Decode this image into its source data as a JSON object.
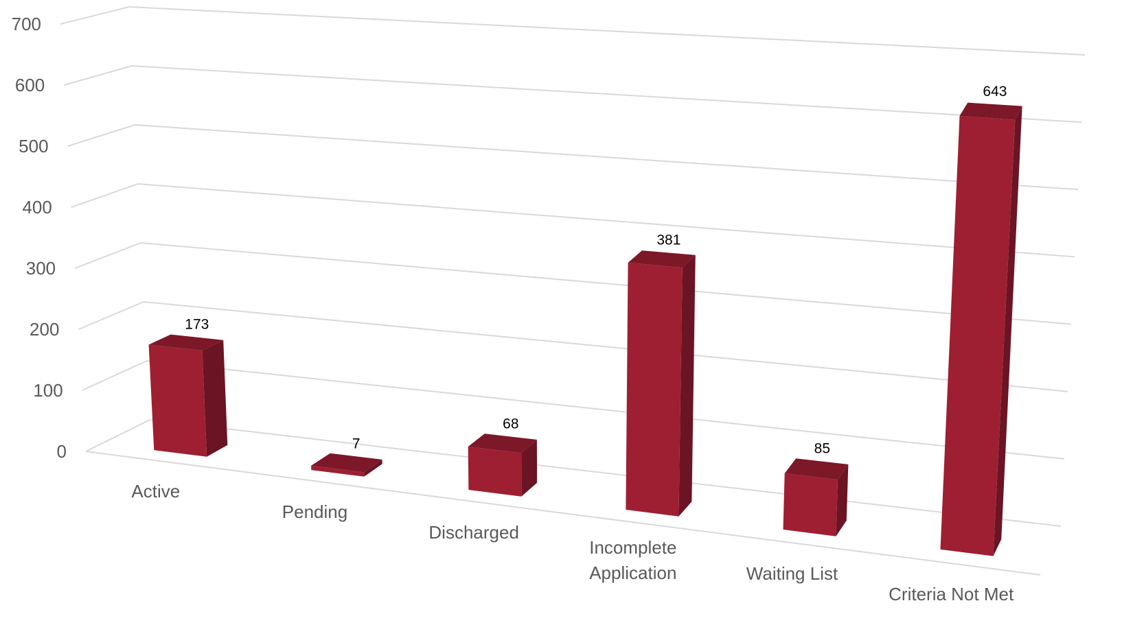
{
  "chart_data": {
    "type": "bar3d",
    "categories": [
      "Active",
      "Pending",
      "Discharged",
      "Incomplete Application",
      "Waiting List",
      "Criteria Not Met"
    ],
    "values": [
      173,
      7,
      68,
      381,
      85,
      643
    ],
    "color": "#9e1f32",
    "ylim": [
      0,
      700
    ],
    "yticks": [
      0,
      100,
      200,
      300,
      400,
      500,
      600,
      700
    ],
    "grid": true
  }
}
